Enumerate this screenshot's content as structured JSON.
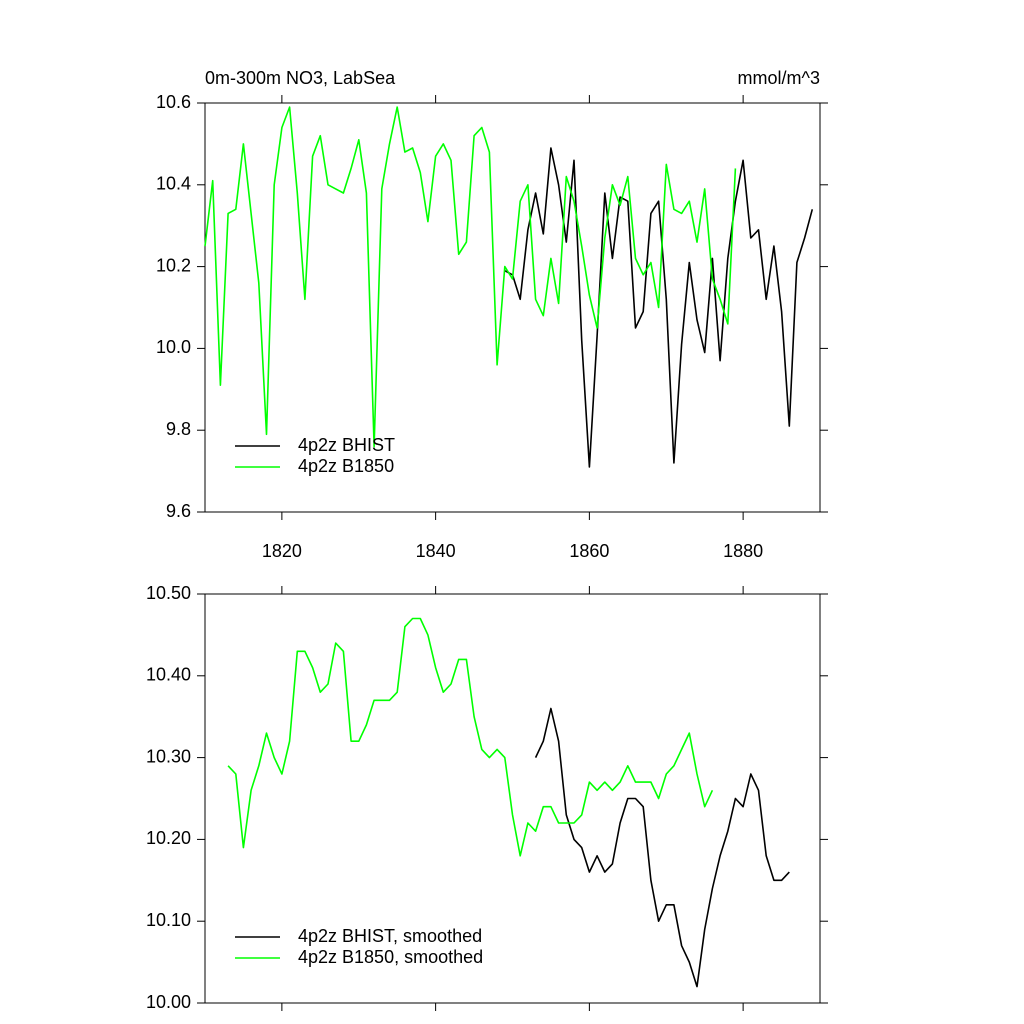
{
  "chart_data": [
    {
      "type": "line",
      "title": "0m-300m NO3, LabSea",
      "units": "mmol/m^3",
      "xlim": [
        1810,
        1890
      ],
      "xticks": [
        1820,
        1840,
        1860,
        1880
      ],
      "xticklabels": true,
      "ylim": [
        9.6,
        10.6
      ],
      "yticks": [
        9.6,
        9.8,
        {
          "value": 10,
          "label": "10.0"
        },
        10.2,
        10.4,
        10.6
      ],
      "legend": "lower left",
      "series": [
        {
          "name": "4p2z BHIST",
          "color": "#000000",
          "x": [
            1849,
            1850,
            1851,
            1852,
            1853,
            1854,
            1855,
            1856,
            1857,
            1858,
            1859,
            1860,
            1861,
            1862,
            1863,
            1864,
            1865,
            1866,
            1867,
            1868,
            1869,
            1870,
            1871,
            1872,
            1873,
            1874,
            1875,
            1876,
            1877,
            1878,
            1879,
            1880,
            1881,
            1882,
            1883,
            1884,
            1885,
            1886,
            1887,
            1888,
            1889
          ],
          "values": [
            10.19,
            10.18,
            10.12,
            10.29,
            10.38,
            10.28,
            10.49,
            10.4,
            10.26,
            10.46,
            10.02,
            9.71,
            10.03,
            10.38,
            10.22,
            10.37,
            10.36,
            10.05,
            10.09,
            10.33,
            10.36,
            10.12,
            9.72,
            10.01,
            10.21,
            10.07,
            9.99,
            10.22,
            9.97,
            10.22,
            10.36,
            10.46,
            10.27,
            10.29,
            10.12,
            10.25,
            10.09,
            9.81,
            10.21,
            10.27,
            10.34
          ]
        },
        {
          "name": "4p2z B1850",
          "color": "#00ff00",
          "x": [
            1810,
            1811,
            1812,
            1813,
            1814,
            1815,
            1816,
            1817,
            1818,
            1819,
            1820,
            1821,
            1822,
            1823,
            1824,
            1825,
            1826,
            1827,
            1828,
            1829,
            1830,
            1831,
            1832,
            1833,
            1834,
            1835,
            1836,
            1837,
            1838,
            1839,
            1840,
            1841,
            1842,
            1843,
            1844,
            1845,
            1846,
            1847,
            1848,
            1849,
            1850,
            1851,
            1852,
            1853,
            1854,
            1855,
            1856,
            1857,
            1858,
            1859,
            1860,
            1861,
            1862,
            1863,
            1864,
            1865,
            1866,
            1867,
            1868,
            1869,
            1870,
            1871,
            1872,
            1873,
            1874,
            1875,
            1876,
            1877,
            1878,
            1879
          ],
          "values": [
            10.25,
            10.41,
            9.91,
            10.33,
            10.34,
            10.5,
            10.33,
            10.16,
            9.79,
            10.4,
            10.54,
            10.59,
            10.38,
            10.12,
            10.47,
            10.52,
            10.4,
            10.39,
            10.38,
            10.44,
            10.51,
            10.38,
            9.76,
            10.39,
            10.5,
            10.59,
            10.48,
            10.49,
            10.43,
            10.31,
            10.47,
            10.5,
            10.46,
            10.23,
            10.26,
            10.52,
            10.54,
            10.48,
            9.96,
            10.2,
            10.17,
            10.36,
            10.4,
            10.12,
            10.08,
            10.22,
            10.11,
            10.42,
            10.36,
            10.25,
            10.13,
            10.05,
            10.27,
            10.4,
            10.35,
            10.42,
            10.22,
            10.18,
            10.21,
            10.1,
            10.45,
            10.34,
            10.33,
            10.36,
            10.26,
            10.39,
            10.17,
            10.12,
            10.06,
            10.44
          ]
        }
      ]
    },
    {
      "type": "line",
      "xlim": [
        1810,
        1890
      ],
      "xticks": [
        1820,
        1840,
        1860,
        1880
      ],
      "xticklabels": false,
      "ylim": [
        10,
        10.5
      ],
      "yticks": [
        {
          "value": 10,
          "label": "10.00"
        },
        {
          "value": 10.1,
          "label": "10.10"
        },
        {
          "value": 10.2,
          "label": "10.20"
        },
        {
          "value": 10.3,
          "label": "10.30"
        },
        {
          "value": 10.4,
          "label": "10.40"
        },
        {
          "value": 10.5,
          "label": "10.50"
        }
      ],
      "legend": "lower left",
      "series": [
        {
          "name": "4p2z BHIST, smoothed",
          "color": "#000000",
          "x": [
            1853,
            1854,
            1855,
            1856,
            1857,
            1858,
            1859,
            1860,
            1861,
            1862,
            1863,
            1864,
            1865,
            1866,
            1867,
            1868,
            1869,
            1870,
            1871,
            1872,
            1873,
            1874,
            1875,
            1876,
            1877,
            1878,
            1879,
            1880,
            1881,
            1882,
            1883,
            1884,
            1885,
            1886
          ],
          "values": [
            10.3,
            10.32,
            10.36,
            10.32,
            10.23,
            10.2,
            10.19,
            10.16,
            10.18,
            10.16,
            10.17,
            10.22,
            10.25,
            10.25,
            10.24,
            10.15,
            10.1,
            10.12,
            10.12,
            10.07,
            10.05,
            10.02,
            10.09,
            10.14,
            10.18,
            10.21,
            10.25,
            10.24,
            10.28,
            10.26,
            10.18,
            10.15,
            10.15,
            10.16
          ]
        },
        {
          "name": "4p2z B1850, smoothed",
          "color": "#00ff00",
          "x": [
            1813,
            1814,
            1815,
            1816,
            1817,
            1818,
            1819,
            1820,
            1821,
            1822,
            1823,
            1824,
            1825,
            1826,
            1827,
            1828,
            1829,
            1830,
            1831,
            1832,
            1833,
            1834,
            1835,
            1836,
            1837,
            1838,
            1839,
            1840,
            1841,
            1842,
            1843,
            1844,
            1845,
            1846,
            1847,
            1848,
            1849,
            1850,
            1851,
            1852,
            1853,
            1854,
            1855,
            1856,
            1857,
            1858,
            1859,
            1860,
            1861,
            1862,
            1863,
            1864,
            1865,
            1866,
            1867,
            1868,
            1869,
            1870,
            1871,
            1872,
            1873,
            1874,
            1875,
            1876
          ],
          "values": [
            10.29,
            10.28,
            10.19,
            10.26,
            10.29,
            10.33,
            10.3,
            10.28,
            10.32,
            10.43,
            10.43,
            10.41,
            10.38,
            10.39,
            10.44,
            10.43,
            10.32,
            10.32,
            10.34,
            10.37,
            10.37,
            10.37,
            10.38,
            10.46,
            10.47,
            10.47,
            10.45,
            10.41,
            10.38,
            10.39,
            10.42,
            10.42,
            10.35,
            10.31,
            10.3,
            10.31,
            10.3,
            10.23,
            10.18,
            10.22,
            10.21,
            10.24,
            10.24,
            10.22,
            10.22,
            10.22,
            10.23,
            10.27,
            10.26,
            10.27,
            10.26,
            10.27,
            10.29,
            10.27,
            10.27,
            10.27,
            10.25,
            10.28,
            10.29,
            10.31,
            10.33,
            10.28,
            10.24,
            10.26
          ]
        }
      ]
    }
  ]
}
